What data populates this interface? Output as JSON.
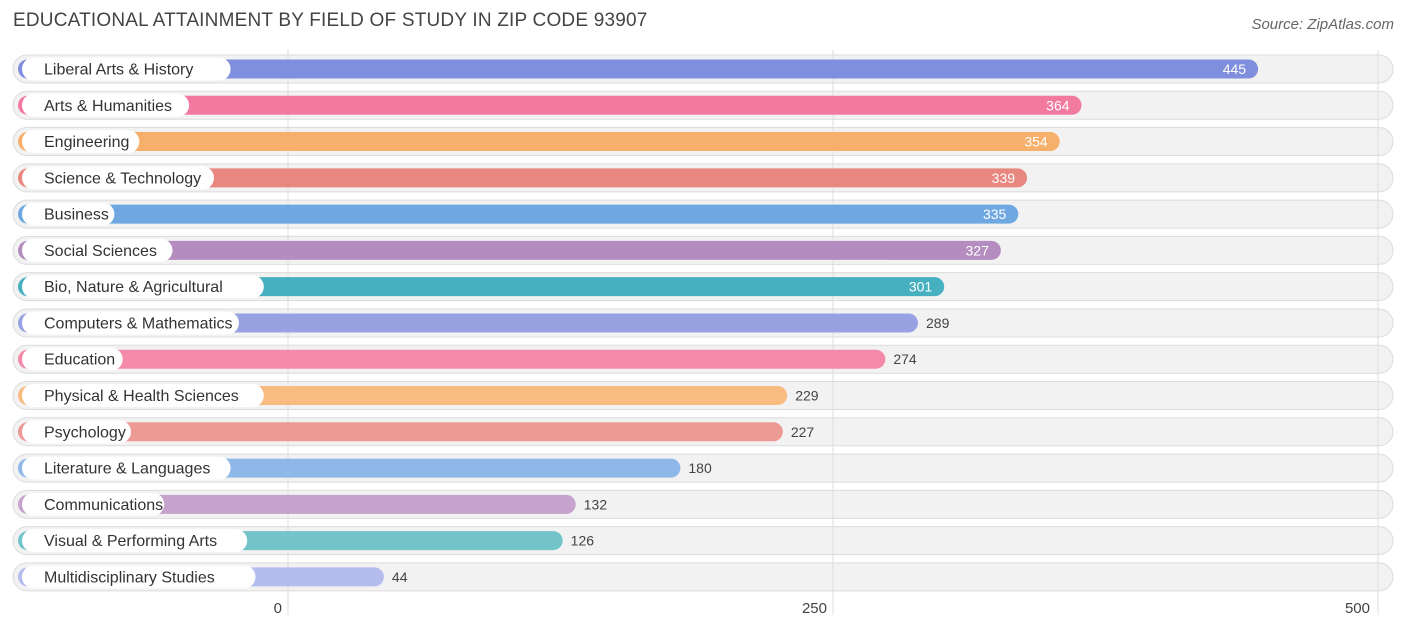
{
  "title": "EDUCATIONAL ATTAINMENT BY FIELD OF STUDY IN ZIP CODE 93907",
  "source": "Source: ZipAtlas.com",
  "chart_data": {
    "type": "bar",
    "orientation": "horizontal",
    "title": "EDUCATIONAL ATTAINMENT BY FIELD OF STUDY IN ZIP CODE 93907",
    "xlabel": "",
    "ylabel": "",
    "xlim": [
      0,
      500
    ],
    "ticks": [
      0,
      250,
      500
    ],
    "grid": true,
    "categories": [
      "Liberal Arts & History",
      "Arts & Humanities",
      "Engineering",
      "Science & Technology",
      "Business",
      "Social Sciences",
      "Bio, Nature & Agricultural",
      "Computers & Mathematics",
      "Education",
      "Physical & Health Sciences",
      "Psychology",
      "Literature & Languages",
      "Communications",
      "Visual & Performing Arts",
      "Multidisciplinary Studies"
    ],
    "values": [
      445,
      364,
      354,
      339,
      335,
      327,
      301,
      289,
      274,
      229,
      227,
      180,
      132,
      126,
      44
    ],
    "colors": [
      "#7f8fdd",
      "#f2799f",
      "#f7b06c",
      "#e8877f",
      "#6fa8e0",
      "#b48cbf",
      "#47b0c0",
      "#98a2e3",
      "#f48aaa",
      "#f8bc80",
      "#ec9a93",
      "#8fb8e8",
      "#c6a3cc",
      "#72c4c9",
      "#b4bdee"
    ]
  }
}
